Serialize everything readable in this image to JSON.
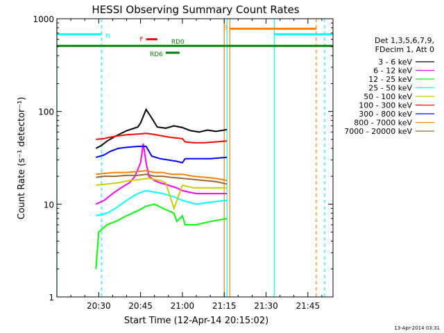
{
  "chart_data": {
    "type": "line",
    "title": "HESSI Observing Summary Count Rates",
    "xlabel": "Start Time (12-Apr-14 20:15:02)",
    "ylabel": "Count Rate (s⁻¹ detector⁻¹)",
    "yscale": "log",
    "ylim": [
      1,
      1000
    ],
    "xlim": [
      "20:15",
      "21:54"
    ],
    "x_ticks": [
      "20:30",
      "20:45",
      "21:00",
      "21:15",
      "21:30",
      "21:45"
    ],
    "y_ticks": [
      "1",
      "10",
      "100",
      "1000"
    ],
    "grid": false,
    "legend_position": "right",
    "legend_header": [
      "Det 1,3,5,6,7,9,",
      "FDecim 1, Att 0"
    ],
    "series": [
      {
        "name": "3 - 6 keV",
        "color": "#000000",
        "x": [
          "20:29",
          "20:31",
          "20:33",
          "20:36",
          "20:40",
          "20:44",
          "20:45",
          "20:47",
          "20:49",
          "20:51",
          "20:54",
          "20:57",
          "21:00",
          "21:03",
          "21:06",
          "21:09",
          "21:12",
          "21:15",
          "21:16"
        ],
        "y": [
          40,
          43,
          48,
          54,
          62,
          68,
          75,
          105,
          85,
          68,
          66,
          70,
          67,
          62,
          60,
          63,
          61,
          63,
          64
        ]
      },
      {
        "name": "6 - 12 keV",
        "color": "#ff00ff",
        "x": [
          "20:29",
          "20:32",
          "20:35",
          "20:38",
          "20:41",
          "20:43",
          "20:45",
          "20:46",
          "20:47",
          "20:48",
          "20:50",
          "20:52",
          "20:55",
          "20:58",
          "21:00",
          "21:05",
          "21:10",
          "21:16"
        ],
        "y": [
          10,
          11,
          13,
          15,
          17,
          20,
          28,
          45,
          28,
          20,
          18,
          17,
          16,
          15,
          14,
          13,
          13,
          13
        ]
      },
      {
        "name": "12 - 25 keV",
        "color": "#00ff00",
        "x": [
          "20:29",
          "20:30",
          "20:33",
          "20:36",
          "20:40",
          "20:44",
          "20:47",
          "20:50",
          "20:53",
          "20:57",
          "20:58",
          "21:00",
          "21:01",
          "21:05",
          "21:10",
          "21:16"
        ],
        "y": [
          2,
          5,
          6,
          6.5,
          7.5,
          8.5,
          9.5,
          10,
          9,
          8,
          6.5,
          7.5,
          6,
          6,
          6.5,
          7
        ]
      },
      {
        "name": "25 - 50 keV",
        "color": "#00ffff",
        "x": [
          "20:29",
          "20:33",
          "20:36",
          "20:40",
          "20:44",
          "20:47",
          "20:50",
          "20:53",
          "20:57",
          "21:00",
          "21:05",
          "21:10",
          "21:16"
        ],
        "y": [
          7.5,
          8,
          9,
          11,
          13,
          14,
          13.5,
          13,
          12,
          11,
          10,
          10.5,
          11
        ]
      },
      {
        "name": "50 - 100 keV",
        "color": "#cccc00",
        "x": [
          "20:29",
          "20:33",
          "20:37",
          "20:41",
          "20:45",
          "20:48",
          "20:52",
          "20:54",
          "20:57",
          "21:00",
          "21:04",
          "21:08",
          "21:12",
          "21:16"
        ],
        "y": [
          16,
          16.5,
          17,
          18,
          18.5,
          19,
          18,
          17,
          9,
          16,
          15,
          15,
          15,
          15
        ]
      },
      {
        "name": "100 - 300 keV",
        "color": "#ff0000",
        "x": [
          "20:29",
          "20:32",
          "20:33",
          "20:36",
          "20:40",
          "20:44",
          "20:47",
          "20:49",
          "20:52",
          "20:55",
          "20:57",
          "21:00",
          "21:01",
          "21:04",
          "21:08",
          "21:12",
          "21:16"
        ],
        "y": [
          50,
          51,
          52,
          54,
          56,
          57,
          58,
          57,
          55,
          53,
          52,
          51,
          47,
          46,
          46,
          47,
          48
        ]
      },
      {
        "name": "300 - 800 keV",
        "color": "#0000ff",
        "x": [
          "20:29",
          "20:32",
          "20:34",
          "20:37",
          "20:40",
          "20:44",
          "20:47",
          "20:49",
          "20:52",
          "20:55",
          "20:58",
          "21:00",
          "21:01",
          "21:05",
          "21:10",
          "21:16"
        ],
        "y": [
          32,
          34,
          37,
          40,
          41,
          42,
          42,
          33,
          31,
          30,
          29,
          28,
          31,
          31,
          31,
          32
        ]
      },
      {
        "name": "800 - 7000 keV",
        "color": "#ff8000",
        "x": [
          "20:29",
          "20:32",
          "20:36",
          "20:40",
          "20:44",
          "20:47",
          "20:50",
          "20:53",
          "20:56",
          "21:00",
          "21:04",
          "21:08",
          "21:12",
          "21:16"
        ],
        "y": [
          21,
          21.5,
          22,
          22,
          22.5,
          23,
          22,
          22,
          21,
          21,
          20,
          19.5,
          19,
          18
        ]
      },
      {
        "name": "7000 - 20000 keV",
        "color": "#996633",
        "x": [
          "20:29",
          "20:32",
          "20:36",
          "20:40",
          "20:44",
          "20:47",
          "20:50",
          "20:53",
          "20:56",
          "21:00",
          "21:04",
          "21:08",
          "21:12",
          "21:16"
        ],
        "y": [
          19.5,
          20,
          20,
          20.5,
          20.5,
          21,
          20,
          20,
          19.5,
          19,
          18.5,
          18,
          17.5,
          16.5
        ]
      }
    ],
    "annotations": [
      {
        "label": "N",
        "kind": "night",
        "color": "#00ffff",
        "y": 680,
        "from": "20:15",
        "to": "20:31",
        "from2": "21:33",
        "to2": "21:54"
      },
      {
        "label": "S",
        "kind": "saa",
        "color": "#ff8000",
        "y": 780,
        "from": "21:17",
        "to": "21:48"
      },
      {
        "label": "F",
        "kind": "flare",
        "color": "#ff0000",
        "y": 600,
        "from": "20:47",
        "to": "20:51"
      },
      {
        "label": "RD0",
        "kind": "decimation",
        "color": "#008000",
        "y": 510
      },
      {
        "label": "RD6",
        "kind": "decimation",
        "color": "#008000",
        "y": 430,
        "from": "20:54",
        "to": "20:59"
      }
    ],
    "vertical_markers": [
      {
        "color": "#00ffff",
        "style": "solid",
        "at": "20:15"
      },
      {
        "color": "#00ffff",
        "style": "dashed",
        "at": "20:31"
      },
      {
        "color": "#00ffff",
        "style": "solid",
        "at": "21:16"
      },
      {
        "color": "#ff8000",
        "style": "solid",
        "at": "21:15"
      },
      {
        "color": "#ff8000",
        "style": "solid",
        "at": "21:17"
      },
      {
        "color": "#00ffff",
        "style": "solid",
        "at": "21:33"
      },
      {
        "color": "#ff8000",
        "style": "dashed",
        "at": "21:48"
      },
      {
        "color": "#00ffff",
        "style": "dashed",
        "at": "21:51"
      }
    ],
    "footer_timestamp": "13-Apr-2014 03:31"
  }
}
